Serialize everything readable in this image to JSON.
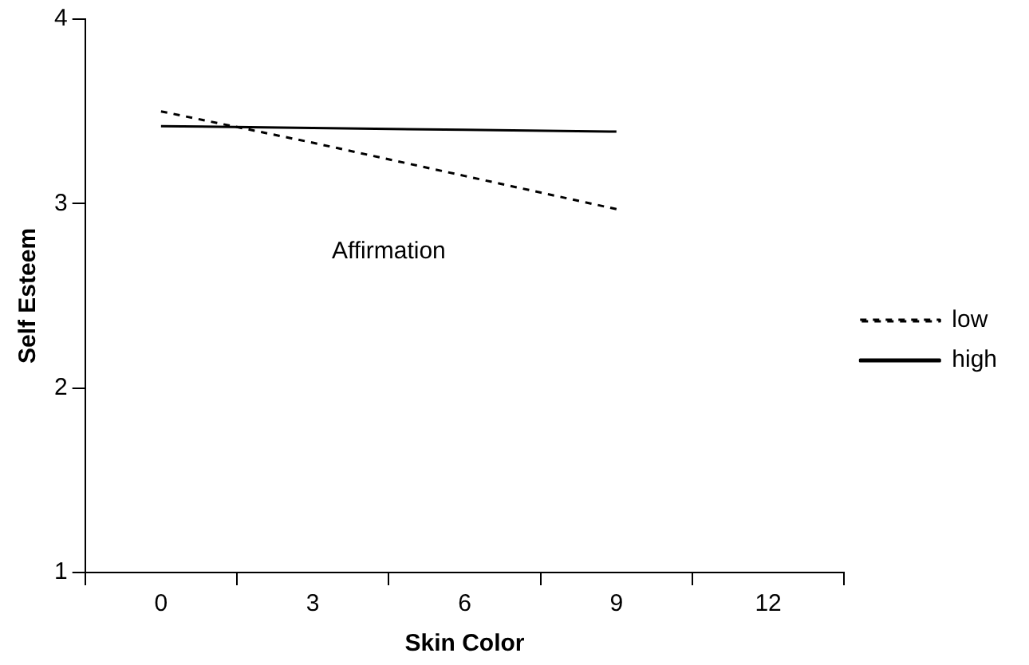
{
  "chart_data": {
    "type": "line",
    "xlabel": "Skin Color",
    "ylabel": "Self Esteem",
    "categories": [
      "0",
      "3",
      "6",
      "9",
      "12"
    ],
    "series": [
      {
        "name": "low",
        "color": "#000000",
        "line_style": "dotted",
        "values": [
          3.5,
          3.33,
          3.15,
          2.97,
          null
        ]
      },
      {
        "name": "high",
        "color": "#000000",
        "line_style": "solid",
        "values": [
          3.42,
          3.41,
          3.4,
          3.39,
          null
        ]
      }
    ],
    "ylim": [
      1,
      4
    ],
    "yticks": [
      1,
      2,
      3,
      4
    ],
    "grid": false,
    "legend": "right",
    "marker": "none",
    "annotations": [
      "Affirmation"
    ]
  }
}
